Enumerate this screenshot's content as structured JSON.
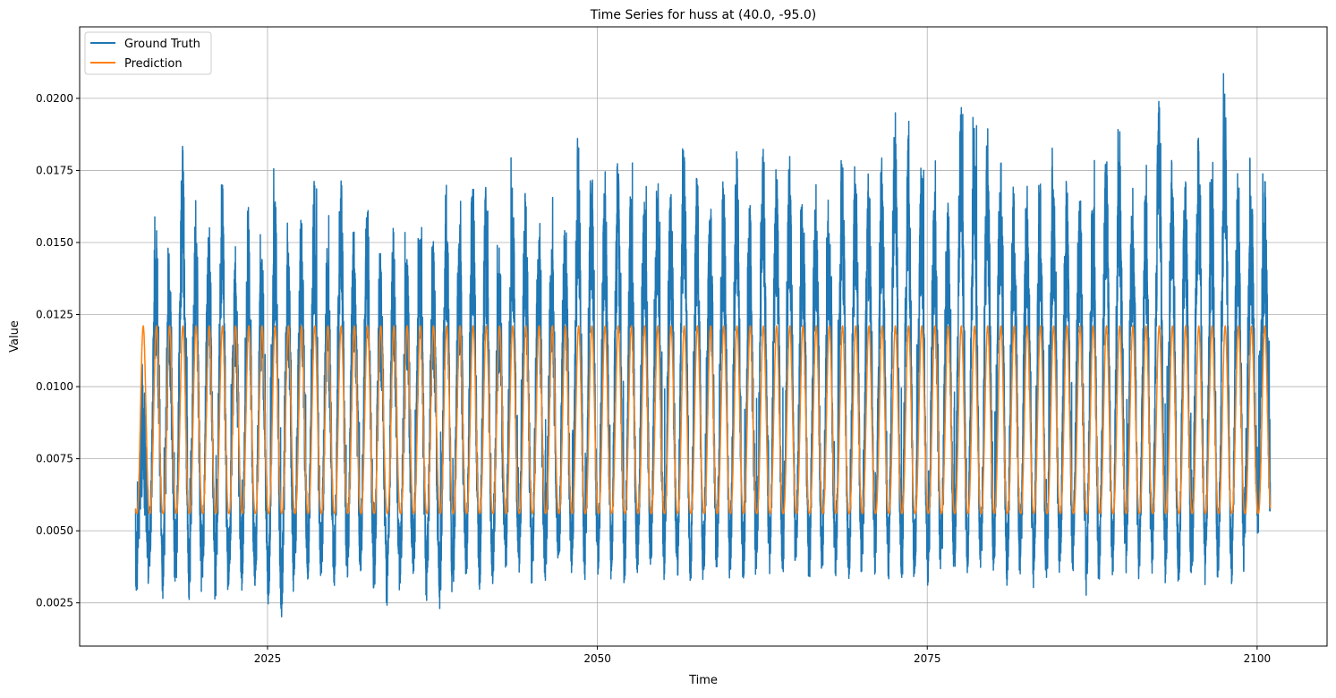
{
  "chart_data": {
    "type": "line",
    "title": "Time Series for huss at (40.0, -95.0)",
    "xlabel": "Time",
    "ylabel": "Value",
    "xlim": [
      2010.76,
      2105.3
    ],
    "ylim": [
      0.001,
      0.02248
    ],
    "grid": true,
    "legend_position": "top-left",
    "x_ticks": [
      2025,
      2050,
      2075,
      2100
    ],
    "x_tick_labels": [
      "2025",
      "2050",
      "2075",
      "2100"
    ],
    "y_ticks": [
      0.0025,
      0.005,
      0.0075,
      0.01,
      0.0125,
      0.015,
      0.0175,
      0.02
    ],
    "y_tick_labels": [
      "0.0025",
      "0.0050",
      "0.0075",
      "0.0100",
      "0.0125",
      "0.0150",
      "0.0175",
      "0.0200"
    ],
    "x_range": [
      2015.0,
      2101.0
    ],
    "series": [
      {
        "name": "Ground Truth",
        "color": "#1f77b4",
        "description_values": "annual peak values, years 2015-2100",
        "annual_peaks": [
          0.012,
          0.0168,
          0.0157,
          0.0193,
          0.0177,
          0.0166,
          0.0181,
          0.016,
          0.0174,
          0.0163,
          0.0178,
          0.0166,
          0.017,
          0.0183,
          0.0161,
          0.0184,
          0.0169,
          0.0175,
          0.0159,
          0.0166,
          0.0158,
          0.0167,
          0.0164,
          0.0181,
          0.0168,
          0.0182,
          0.018,
          0.0162,
          0.0184,
          0.0176,
          0.0168,
          0.0166,
          0.0172,
          0.0193,
          0.0188,
          0.0186,
          0.0189,
          0.0179,
          0.018,
          0.0183,
          0.0181,
          0.0195,
          0.0183,
          0.0174,
          0.0182,
          0.0191,
          0.0172,
          0.0195,
          0.0188,
          0.0189,
          0.0181,
          0.0183,
          0.0178,
          0.019,
          0.019,
          0.0186,
          0.019,
          0.0207,
          0.0197,
          0.019,
          0.0179,
          0.0178,
          0.0207,
          0.0198,
          0.0197,
          0.0192,
          0.0184,
          0.0182,
          0.018,
          0.0188,
          0.018,
          0.0179,
          0.018,
          0.0195,
          0.0194,
          0.018,
          0.0184,
          0.0209,
          0.019,
          0.0186,
          0.02,
          0.0183,
          0.0212,
          0.0184,
          0.018,
          0.0183
        ],
        "annual_mins": [
          0.0027,
          0.0035,
          0.0025,
          0.003,
          0.0024,
          0.0031,
          0.0023,
          0.0028,
          0.0027,
          0.0029,
          0.0022,
          0.0019,
          0.0033,
          0.003,
          0.0031,
          0.0029,
          0.0033,
          0.0034,
          0.0024,
          0.0022,
          0.003,
          0.0032,
          0.0025,
          0.0021,
          0.0029,
          0.0031,
          0.0027,
          0.003,
          0.0034,
          0.0033,
          0.0029,
          0.0032,
          0.0035,
          0.003,
          0.0032,
          0.0034,
          0.0031,
          0.003,
          0.0033,
          0.0035,
          0.0032,
          0.0031,
          0.0028,
          0.0033,
          0.0035,
          0.0031,
          0.003,
          0.0034,
          0.0032,
          0.0033,
          0.0035,
          0.0031,
          0.0034,
          0.0032,
          0.003,
          0.0034,
          0.0033,
          0.0031,
          0.0026,
          0.0032,
          0.0029,
          0.0033,
          0.003,
          0.0034,
          0.0031,
          0.0032,
          0.003,
          0.0034,
          0.0029,
          0.003,
          0.0033,
          0.0035,
          0.0026,
          0.0031,
          0.0033,
          0.0034,
          0.0032,
          0.0034,
          0.003,
          0.0027,
          0.0032,
          0.0029,
          0.0031,
          0.0028,
          0.0046,
          0.0046
        ]
      },
      {
        "name": "Prediction",
        "color": "#ff7f0e",
        "seasonal_min": 0.0056,
        "seasonal_max": 0.0121,
        "period_years": 1
      }
    ]
  }
}
